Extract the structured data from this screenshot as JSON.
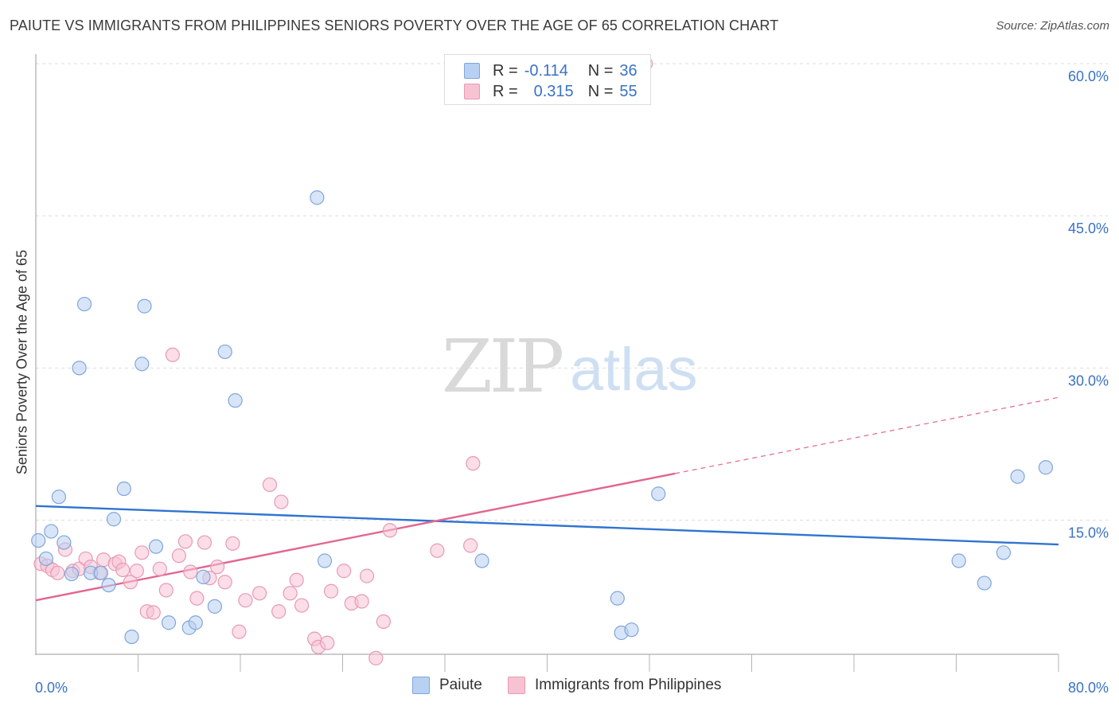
{
  "title": "PAIUTE VS IMMIGRANTS FROM PHILIPPINES SENIORS POVERTY OVER THE AGE OF 65 CORRELATION CHART",
  "source": "Source: ZipAtlas.com",
  "watermark": {
    "zip": "ZIP",
    "atlas": "atlas"
  },
  "legend": {
    "rows": [
      {
        "r_label": "R =",
        "r_value": "-0.114",
        "n_label": "N =",
        "n_value": "36"
      },
      {
        "r_label": "R =",
        "r_value": "0.315",
        "n_label": "N =",
        "n_value": "55"
      }
    ]
  },
  "bottom_legend": [
    "Paiute",
    "Immigrants from Philippines"
  ],
  "chart_data": {
    "type": "scatter",
    "title": "PAIUTE VS IMMIGRANTS FROM PHILIPPINES SENIORS POVERTY OVER THE AGE OF 65 CORRELATION CHART",
    "xlabel": "",
    "ylabel": "Seniors Poverty Over the Age of 65",
    "xlim": [
      0,
      80
    ],
    "ylim": [
      0,
      62
    ],
    "x_tick_labels": [
      "0.0%",
      "80.0%"
    ],
    "y_ticks": [
      15,
      30,
      45,
      60
    ],
    "y_tick_labels": [
      "15.0%",
      "30.0%",
      "45.0%",
      "60.0%"
    ],
    "grid": true,
    "legend_position": "top-center",
    "colors": {
      "paiute_fill": "#b8d0f2",
      "paiute_stroke": "#7fa6dc",
      "paiute_line": "#2f74d0",
      "phil_fill": "#f7c3d3",
      "phil_stroke": "#e89ab3",
      "phil_line": "#e26690",
      "axis_label": "#3a72c6"
    },
    "series": [
      {
        "name": "Paiute",
        "points": [
          [
            0.2,
            13.0
          ],
          [
            0.8,
            11.2
          ],
          [
            1.2,
            13.9
          ],
          [
            1.8,
            17.3
          ],
          [
            2.2,
            12.8
          ],
          [
            2.8,
            9.7
          ],
          [
            3.4,
            30.0
          ],
          [
            3.8,
            36.3
          ],
          [
            4.3,
            9.8
          ],
          [
            5.1,
            9.8
          ],
          [
            5.7,
            8.6
          ],
          [
            6.1,
            15.1
          ],
          [
            6.9,
            18.1
          ],
          [
            7.5,
            3.5
          ],
          [
            8.3,
            30.4
          ],
          [
            8.5,
            36.1
          ],
          [
            9.4,
            12.4
          ],
          [
            10.4,
            4.9
          ],
          [
            12.0,
            4.4
          ],
          [
            12.5,
            4.9
          ],
          [
            13.1,
            9.4
          ],
          [
            14.0,
            6.5
          ],
          [
            14.8,
            31.6
          ],
          [
            15.6,
            26.8
          ],
          [
            22.0,
            46.8
          ],
          [
            22.6,
            11.0
          ],
          [
            34.9,
            11.0
          ],
          [
            45.5,
            7.3
          ],
          [
            45.8,
            3.9
          ],
          [
            46.6,
            4.2
          ],
          [
            48.7,
            17.6
          ],
          [
            72.2,
            11.0
          ],
          [
            74.2,
            8.8
          ],
          [
            75.7,
            11.8
          ],
          [
            76.8,
            19.3
          ],
          [
            79.0,
            20.2
          ]
        ]
      },
      {
        "name": "Immigrants from Philippines",
        "points": [
          [
            0.4,
            10.7
          ],
          [
            0.9,
            10.5
          ],
          [
            1.3,
            10.1
          ],
          [
            1.7,
            9.8
          ],
          [
            2.3,
            12.1
          ],
          [
            2.9,
            10.0
          ],
          [
            3.4,
            10.2
          ],
          [
            3.9,
            11.2
          ],
          [
            4.3,
            10.4
          ],
          [
            5.0,
            9.8
          ],
          [
            5.3,
            11.1
          ],
          [
            6.2,
            10.7
          ],
          [
            6.5,
            10.9
          ],
          [
            6.8,
            10.1
          ],
          [
            7.4,
            8.9
          ],
          [
            7.9,
            10.0
          ],
          [
            8.3,
            11.8
          ],
          [
            8.7,
            6.0
          ],
          [
            9.2,
            5.9
          ],
          [
            9.7,
            10.2
          ],
          [
            10.2,
            8.1
          ],
          [
            10.7,
            31.3
          ],
          [
            11.2,
            11.5
          ],
          [
            11.7,
            12.9
          ],
          [
            12.1,
            9.9
          ],
          [
            12.6,
            7.3
          ],
          [
            13.2,
            12.8
          ],
          [
            13.6,
            9.3
          ],
          [
            14.2,
            10.4
          ],
          [
            14.8,
            8.9
          ],
          [
            15.4,
            12.7
          ],
          [
            15.9,
            4.0
          ],
          [
            16.4,
            7.1
          ],
          [
            17.5,
            7.8
          ],
          [
            18.3,
            18.5
          ],
          [
            19.0,
            6.0
          ],
          [
            19.2,
            16.8
          ],
          [
            19.9,
            7.8
          ],
          [
            20.4,
            9.1
          ],
          [
            20.8,
            6.6
          ],
          [
            21.8,
            3.3
          ],
          [
            22.1,
            2.5
          ],
          [
            22.8,
            2.9
          ],
          [
            23.1,
            8.0
          ],
          [
            24.1,
            10.0
          ],
          [
            24.7,
            6.8
          ],
          [
            25.5,
            7.0
          ],
          [
            25.9,
            9.5
          ],
          [
            26.6,
            1.4
          ],
          [
            27.2,
            5.0
          ],
          [
            27.7,
            14.0
          ],
          [
            31.4,
            12.0
          ],
          [
            34.0,
            12.5
          ],
          [
            34.2,
            20.6
          ],
          [
            47.7,
            60.0
          ]
        ]
      }
    ],
    "trend_lines": [
      {
        "name": "Paiute",
        "x": [
          0,
          80
        ],
        "y": [
          16.4,
          12.6
        ],
        "style": "solid"
      },
      {
        "name": "Immigrants from Philippines",
        "x": [
          0,
          50
        ],
        "y": [
          7.1,
          19.6
        ],
        "style": "solid"
      },
      {
        "name": "Immigrants from Philippines",
        "x": [
          50,
          80
        ],
        "y": [
          19.6,
          27.1
        ],
        "style": "dashed"
      }
    ]
  }
}
